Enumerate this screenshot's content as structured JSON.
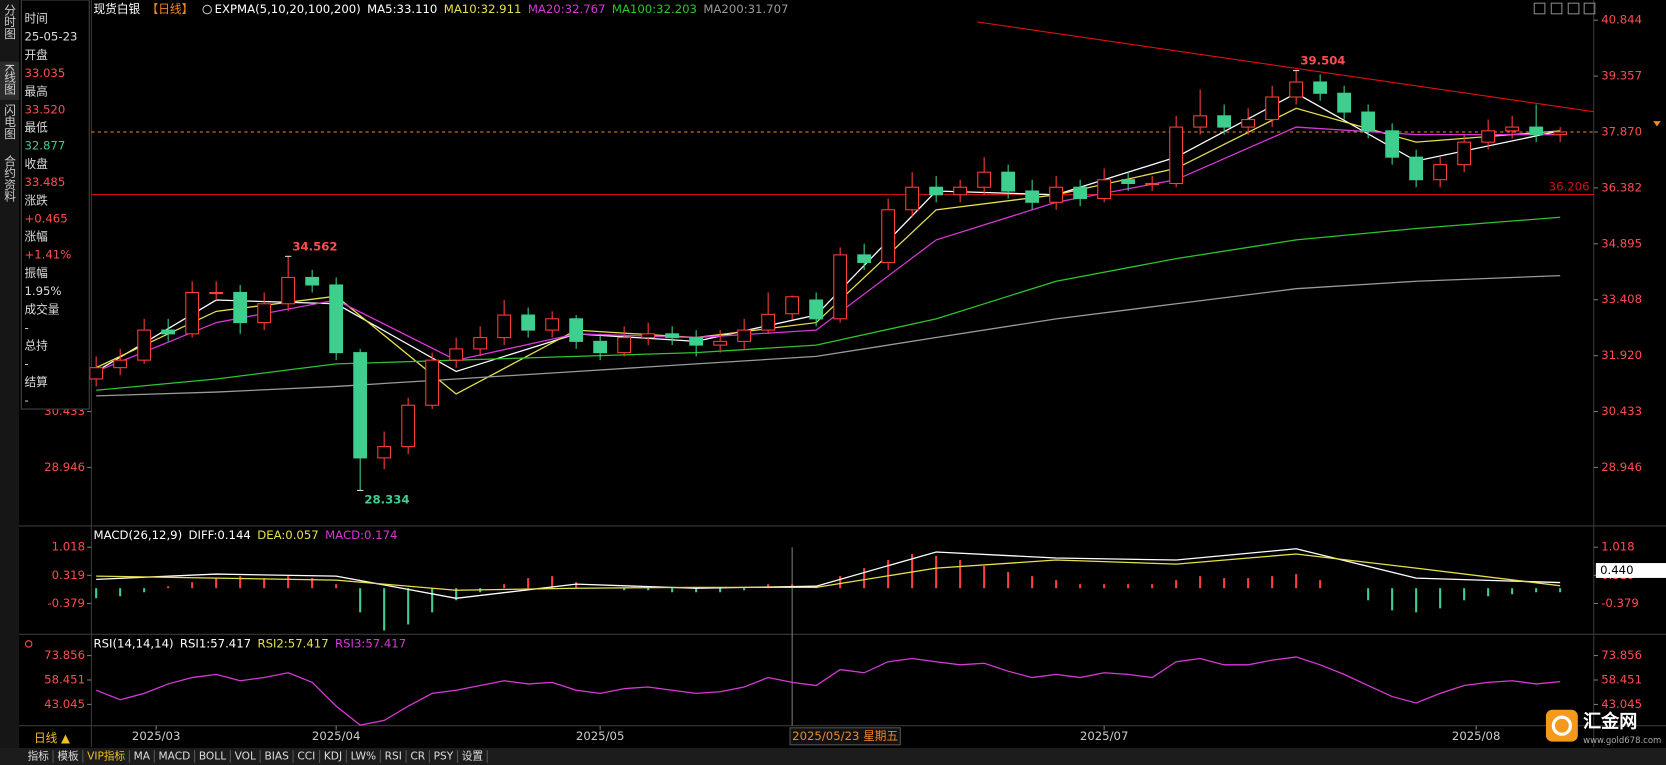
{
  "side_tabs": [
    "分时图",
    "K线图",
    "闪电图",
    "合约资料"
  ],
  "info_panel": [
    {
      "label": "时间",
      "value": "25-05-23",
      "color": "#dddddd"
    },
    {
      "label": "开盘",
      "value": "33.035",
      "color": "#ff4d4d"
    },
    {
      "label": "最高",
      "value": "33.520",
      "color": "#ff4d4d"
    },
    {
      "label": "最低",
      "value": "32.877",
      "color": "#3dcf8e"
    },
    {
      "label": "收盘",
      "value": "33.485",
      "color": "#ff4d4d"
    },
    {
      "label": "涨跌",
      "value": "+0.465",
      "color": "#ff4d4d"
    },
    {
      "label": "涨幅",
      "value": "+1.41%",
      "color": "#ff4d4d"
    },
    {
      "label": "振幅",
      "value": "1.95%",
      "color": "#dddddd"
    },
    {
      "label": "成交量",
      "value": "-",
      "color": "#dddddd"
    },
    {
      "label": "总持",
      "value": "-",
      "color": "#dddddd"
    },
    {
      "label": "结算",
      "value": "-",
      "color": "#dddddd"
    }
  ],
  "chart_data": [
    {
      "type": "candlestick",
      "title": "现货白银",
      "subtitle": "【日线】",
      "indicator": "EXPMA(5,10,20,100,200)",
      "up_color": "#ff3d3d",
      "down_color": "#3dcf8e",
      "open": [
        31.3,
        31.6,
        31.8,
        32.6,
        32.5,
        33.6,
        33.6,
        32.8,
        33.3,
        34.0,
        33.8,
        32.0,
        29.2,
        29.5,
        30.6,
        31.8,
        32.1,
        32.4,
        33.0,
        32.6,
        32.9,
        32.3,
        32.0,
        32.4,
        32.5,
        32.4,
        32.2,
        32.3,
        32.6,
        33.035,
        33.4,
        32.9,
        34.6,
        34.4,
        35.8,
        36.4,
        36.2,
        36.4,
        36.8,
        36.3,
        36.0,
        36.4,
        36.1,
        36.6,
        36.5,
        36.5,
        38.0,
        38.3,
        38.0,
        38.2,
        38.8,
        39.2,
        38.9,
        38.4,
        37.9,
        37.2,
        36.6,
        37.0,
        37.6,
        37.9,
        38.0,
        37.8
      ],
      "high": [
        31.9,
        32.1,
        32.9,
        32.9,
        33.9,
        33.9,
        33.8,
        33.6,
        34.562,
        34.2,
        34.0,
        32.1,
        29.9,
        30.8,
        32.0,
        32.4,
        32.7,
        33.4,
        33.2,
        33.1,
        33.0,
        32.5,
        32.7,
        32.8,
        32.7,
        32.6,
        32.6,
        32.9,
        33.6,
        33.52,
        33.6,
        34.8,
        34.9,
        36.1,
        36.8,
        36.7,
        36.6,
        37.2,
        37.0,
        36.6,
        36.7,
        36.6,
        36.9,
        36.8,
        36.7,
        38.3,
        39.0,
        38.6,
        38.5,
        39.1,
        39.504,
        39.4,
        39.1,
        38.6,
        38.1,
        37.4,
        37.2,
        37.8,
        38.2,
        38.3,
        38.6,
        38.0
      ],
      "low": [
        31.1,
        31.4,
        31.7,
        32.3,
        32.4,
        33.4,
        32.5,
        32.6,
        33.1,
        33.6,
        31.8,
        28.334,
        28.9,
        29.3,
        30.5,
        31.6,
        31.9,
        32.2,
        32.4,
        32.4,
        32.1,
        31.8,
        31.9,
        32.2,
        32.2,
        31.9,
        32.0,
        32.1,
        32.5,
        32.877,
        32.7,
        32.8,
        34.2,
        34.2,
        35.6,
        36.0,
        36.0,
        36.2,
        36.1,
        35.8,
        35.8,
        35.9,
        36.0,
        36.3,
        36.3,
        36.4,
        37.8,
        37.8,
        37.8,
        38.0,
        38.6,
        38.7,
        38.2,
        37.7,
        37.0,
        36.4,
        36.4,
        36.8,
        37.4,
        37.7,
        37.6,
        37.6
      ],
      "close": [
        31.6,
        31.8,
        32.6,
        32.5,
        33.6,
        33.6,
        32.8,
        33.3,
        34.0,
        33.8,
        32.0,
        29.2,
        29.5,
        30.6,
        31.8,
        32.1,
        32.4,
        33.0,
        32.6,
        32.9,
        32.3,
        32.0,
        32.4,
        32.5,
        32.4,
        32.2,
        32.3,
        32.6,
        33.02,
        33.485,
        32.9,
        34.6,
        34.4,
        35.8,
        36.4,
        36.2,
        36.4,
        36.8,
        36.3,
        36.0,
        36.4,
        36.1,
        36.6,
        36.5,
        36.5,
        38.0,
        38.3,
        38.0,
        38.2,
        38.8,
        39.2,
        38.9,
        38.4,
        37.9,
        37.2,
        36.6,
        37.0,
        37.6,
        37.9,
        38.0,
        37.8,
        37.87
      ],
      "series": [
        {
          "name": "MA5:33.110",
          "color": "#ffffff",
          "x": [
            0,
            5,
            10,
            15,
            20,
            25,
            30,
            35,
            40,
            45,
            50,
            55,
            61
          ],
          "values": [
            31.5,
            33.4,
            33.3,
            31.5,
            32.5,
            32.3,
            33.0,
            36.3,
            36.2,
            37.2,
            38.9,
            37.1,
            37.9
          ]
        },
        {
          "name": "MA10:32.911",
          "color": "#e8e04a",
          "x": [
            0,
            5,
            10,
            15,
            20,
            25,
            30,
            35,
            40,
            45,
            50,
            55,
            61
          ],
          "values": [
            31.6,
            33.1,
            33.5,
            30.9,
            32.6,
            32.4,
            32.8,
            35.8,
            36.2,
            36.9,
            38.5,
            37.6,
            37.9
          ]
        },
        {
          "name": "MA20:32.767",
          "color": "#d838d8",
          "x": [
            0,
            5,
            10,
            15,
            20,
            25,
            30,
            35,
            40,
            45,
            50,
            55,
            61
          ],
          "values": [
            31.5,
            32.8,
            33.4,
            31.8,
            32.5,
            32.4,
            32.6,
            35.0,
            36.0,
            36.6,
            38.0,
            37.8,
            37.8
          ]
        },
        {
          "name": "MA100:32.203",
          "color": "#2ec42e",
          "x": [
            0,
            5,
            10,
            15,
            20,
            25,
            30,
            35,
            40,
            45,
            50,
            55,
            61
          ],
          "values": [
            31.0,
            31.3,
            31.7,
            31.8,
            31.9,
            32.0,
            32.2,
            32.9,
            33.9,
            34.5,
            35.0,
            35.3,
            35.6
          ]
        },
        {
          "name": "MA200:31.707",
          "color": "#9a9a9a",
          "x": [
            0,
            5,
            10,
            15,
            20,
            25,
            30,
            35,
            40,
            45,
            50,
            55,
            61
          ],
          "values": [
            30.85,
            30.95,
            31.1,
            31.3,
            31.5,
            31.7,
            31.9,
            32.4,
            32.9,
            33.3,
            33.7,
            33.9,
            34.05
          ]
        }
      ],
      "xlim": [
        -0.2,
        62.4
      ],
      "ylim": [
        27.418,
        41.381
      ],
      "yticks": [
        40.844,
        39.357,
        {
          "value": 37.87,
          "label": "37.870"
        },
        36.382,
        34.895,
        33.408,
        {
          "value": 31.92,
          "label": "31.920"
        },
        30.433,
        28.946
      ],
      "xticks": [
        {
          "value": 2.5,
          "label": "2025/03"
        },
        {
          "value": 10,
          "label": "2025/04"
        },
        {
          "value": 21,
          "label": "2025/05"
        },
        {
          "value": 42,
          "label": "2025/07"
        },
        {
          "value": 57.5,
          "label": "2025/08"
        }
      ],
      "annotations": [
        {
          "x": 8,
          "y": 34.562,
          "color": "#ff4d4d",
          "side": "above"
        },
        {
          "x": 50,
          "y": 39.504,
          "color": "#ff4d4d",
          "side": "above"
        },
        {
          "x": 11,
          "y": 28.334,
          "color": "#3dcf8e",
          "side": "below"
        }
      ],
      "hlines": [
        {
          "y": 36.206,
          "color": "#d01010",
          "dashed": false,
          "labeled": true
        },
        {
          "y": 37.87,
          "color": "#f08a24",
          "dashed": true,
          "labeled": false
        }
      ],
      "trendline": {
        "x": [
          36.7,
          62.5
        ],
        "y": [
          40.8,
          38.4
        ],
        "color": "#e01010"
      },
      "crosshair": {
        "x": 29,
        "label": "2025/05/23 星期五"
      }
    },
    {
      "type": "macd",
      "title": "MACD(26,12,9)",
      "series": [
        {
          "name": "DIFF:0.144",
          "color": "#ffffff",
          "x": [
            0,
            5,
            10,
            15,
            20,
            25,
            30,
            35,
            40,
            45,
            50,
            55,
            61
          ],
          "values": [
            0.22,
            0.35,
            0.3,
            -0.25,
            0.1,
            0.0,
            0.05,
            0.9,
            0.75,
            0.7,
            0.98,
            0.25,
            0.14
          ]
        },
        {
          "name": "DEA:0.057",
          "color": "#e8e04a",
          "x": [
            0,
            5,
            10,
            15,
            20,
            25,
            30,
            35,
            40,
            45,
            50,
            55,
            61
          ],
          "values": [
            0.3,
            0.25,
            0.2,
            -0.05,
            0.0,
            0.02,
            0.02,
            0.5,
            0.7,
            0.6,
            0.85,
            0.5,
            0.06
          ]
        }
      ],
      "histogram": {
        "name": "MACD:0.174",
        "color": "#d838d8",
        "up_color": "#ff3d3d",
        "down_color": "#3dcf8e",
        "values": [
          -0.25,
          -0.2,
          -0.1,
          0.05,
          0.15,
          0.25,
          0.3,
          0.25,
          0.3,
          0.25,
          0.1,
          -0.6,
          -1.05,
          -0.9,
          -0.6,
          -0.3,
          -0.1,
          0.1,
          0.25,
          0.3,
          0.15,
          0.0,
          -0.05,
          -0.05,
          -0.1,
          -0.1,
          -0.1,
          -0.05,
          0.1,
          0.1,
          0.05,
          0.3,
          0.5,
          0.7,
          0.85,
          0.8,
          0.7,
          0.55,
          0.4,
          0.3,
          0.2,
          0.1,
          0.1,
          0.1,
          0.1,
          0.2,
          0.3,
          0.25,
          0.25,
          0.3,
          0.35,
          0.2,
          0.0,
          -0.3,
          -0.55,
          -0.6,
          -0.5,
          -0.3,
          -0.2,
          -0.15,
          -0.1,
          -0.1
        ]
      },
      "xlim": [
        -0.2,
        62.4
      ],
      "ylim": [
        -1.145,
        1.52
      ],
      "yticks": [
        1.018,
        0.319,
        -0.379
      ],
      "current": {
        "value": 0.44,
        "label": "0.440"
      }
    },
    {
      "type": "line",
      "title": "RSI(14,14,14)",
      "legend": [
        {
          "name": "RSI1:57.417",
          "color": "#ffffff"
        },
        {
          "name": "RSI2:57.417",
          "color": "#e8e04a"
        },
        {
          "name": "RSI3:57.417",
          "color": "#d838d8"
        }
      ],
      "line": {
        "color": "#d838d8",
        "values": [
          52,
          46,
          50,
          56,
          60,
          62,
          58,
          60,
          63,
          57,
          42,
          30,
          33,
          42,
          50,
          52,
          55,
          58,
          56,
          57,
          52,
          50,
          53,
          54,
          52,
          50,
          51,
          54,
          60,
          57,
          55,
          65,
          63,
          70,
          72,
          70,
          68,
          69,
          64,
          60,
          62,
          60,
          63,
          62,
          60,
          70,
          72,
          68,
          68,
          71,
          73,
          68,
          62,
          55,
          48,
          44,
          50,
          55,
          57,
          58,
          56,
          57.417
        ]
      },
      "xlim": [
        -0.2,
        62.4
      ],
      "ylim": [
        29.65,
        86.58
      ],
      "yticks": [
        73.856,
        58.451,
        43.045
      ]
    }
  ],
  "period_button": "日线 ▲",
  "toolbar": [
    "指标",
    "模板",
    "VIP指标",
    "MA",
    "MACD",
    "BOLL",
    "VOL",
    "BIAS",
    "CCI",
    "KDJ",
    "LW%",
    "RSI",
    "CR",
    "PSY",
    "设置"
  ],
  "logo": {
    "name": "汇金网",
    "url": "www.gold678.com"
  }
}
